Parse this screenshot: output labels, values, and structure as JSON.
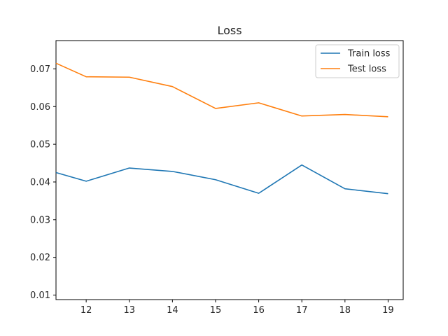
{
  "chart_data": {
    "type": "line",
    "title": "Loss",
    "xlabel": "",
    "ylabel": "",
    "x": [
      11.3,
      12,
      13,
      14,
      15,
      16,
      17,
      18,
      19
    ],
    "xlim": [
      11.3,
      19.35
    ],
    "ylim": [
      0.0088,
      0.0775
    ],
    "xticks": [
      12,
      13,
      14,
      15,
      16,
      17,
      18,
      19
    ],
    "yticks": [
      0.01,
      0.02,
      0.03,
      0.04,
      0.05,
      0.06,
      0.07
    ],
    "series": [
      {
        "name": "Train loss",
        "color": "#1f77b4",
        "values": [
          0.0425,
          0.0402,
          0.0437,
          0.0428,
          0.0406,
          0.037,
          0.0445,
          0.0382,
          0.0369
        ]
      },
      {
        "name": "Test loss",
        "color": "#ff7f0e",
        "values": [
          0.0715,
          0.0679,
          0.0678,
          0.0653,
          0.0595,
          0.061,
          0.0575,
          0.0579,
          0.0573
        ]
      }
    ],
    "grid": false,
    "legend": "top-right"
  }
}
